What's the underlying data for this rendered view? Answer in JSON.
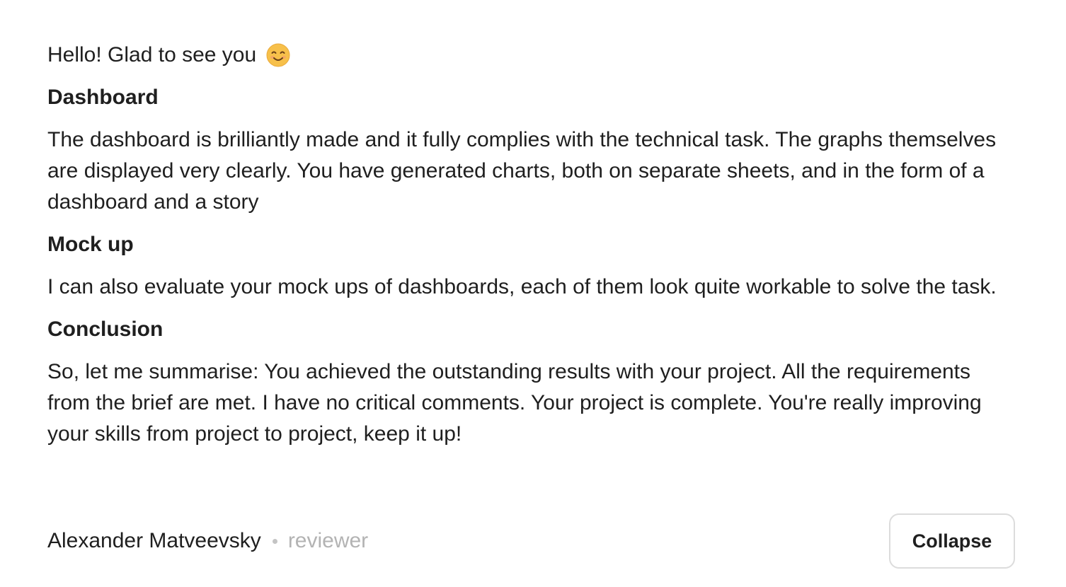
{
  "review": {
    "greeting": "Hello! Glad to see you",
    "greeting_icon": "smiling-face-emoji",
    "sections": [
      {
        "title": "Dashboard",
        "body": "The dashboard is brilliantly made and it fully complies with the technical task. The graphs themselves are displayed very clearly. You have generated charts, both on separate sheets, and in the form of a dashboard and a story"
      },
      {
        "title": "Mock up",
        "body": "I can also evaluate your mock ups of dashboards, each of them look quite workable to solve the task."
      },
      {
        "title": "Conclusion",
        "body": "So, let me summarise: You achieved the outstanding results with your project. All the requirements from the brief are met. I have no critical comments. Your project is complete. You're really improving your skills from project to project, keep it up!"
      }
    ]
  },
  "footer": {
    "author_name": "Alexander Matveevsky",
    "author_role": "reviewer",
    "collapse_label": "Collapse"
  },
  "colors": {
    "text": "#1f1f1f",
    "muted": "#b3b3b3",
    "button_border": "#dcdcdc",
    "emoji_fill": "#f7c04a"
  }
}
